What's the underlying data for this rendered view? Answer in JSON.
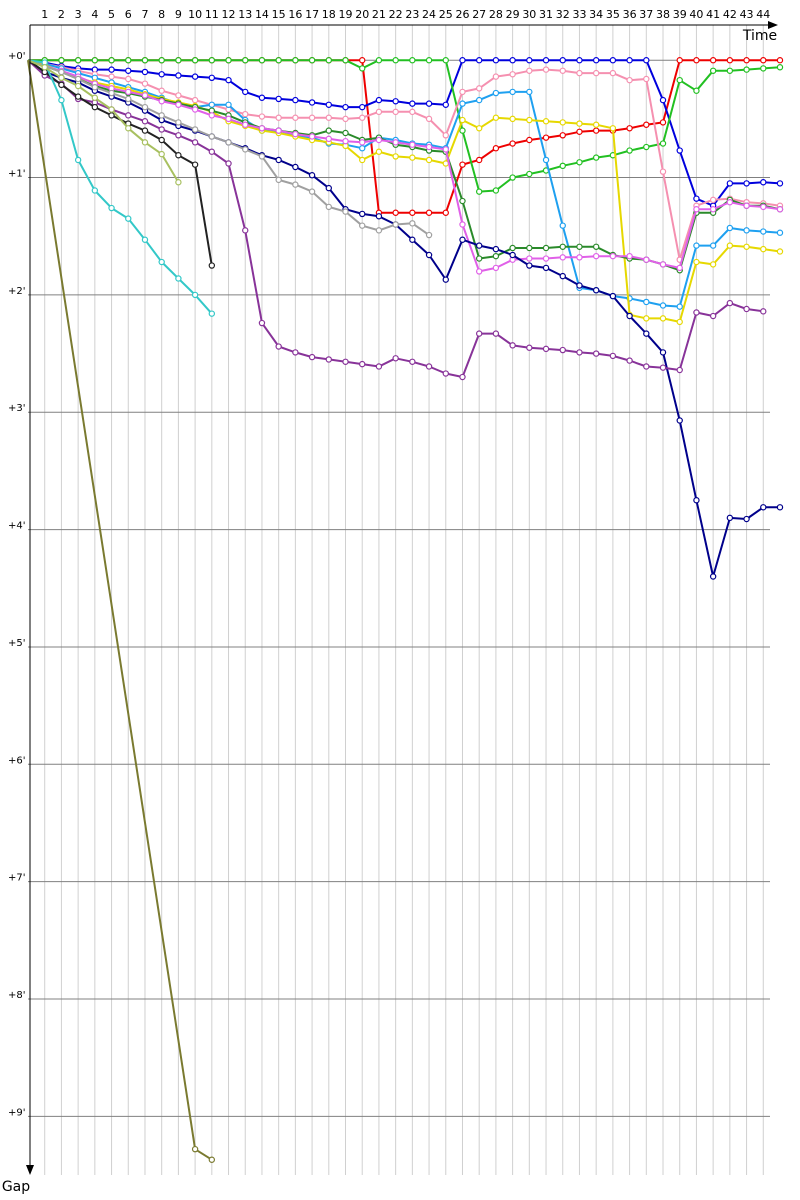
{
  "chart_data": {
    "type": "line",
    "x_label": "Time",
    "y_label": "Gap",
    "x": [
      0,
      1,
      2,
      3,
      4,
      5,
      6,
      7,
      8,
      9,
      10,
      11,
      12,
      13,
      14,
      15,
      16,
      17,
      18,
      19,
      20,
      21,
      22,
      23,
      24,
      25,
      26,
      27,
      28,
      29,
      30,
      31,
      32,
      33,
      34,
      35,
      36,
      37,
      38,
      39,
      40,
      41,
      42,
      43,
      44,
      45
    ],
    "xlim": [
      0,
      45.3
    ],
    "xticks": [
      1,
      2,
      3,
      4,
      5,
      6,
      7,
      8,
      9,
      10,
      11,
      12,
      13,
      14,
      15,
      16,
      17,
      18,
      19,
      20,
      21,
      22,
      23,
      24,
      25,
      26,
      27,
      28,
      29,
      30,
      31,
      32,
      33,
      34,
      35,
      36,
      37,
      38,
      39,
      40,
      41,
      42,
      43,
      44
    ],
    "ylim": [
      -0.3,
      9.5
    ],
    "y_inverted": true,
    "yticks": [
      {
        "value": 0,
        "label": "+0'"
      },
      {
        "value": 1,
        "label": "+1'"
      },
      {
        "value": 2,
        "label": "+2'"
      },
      {
        "value": 3,
        "label": "+3'"
      },
      {
        "value": 4,
        "label": "+4'"
      },
      {
        "value": 5,
        "label": "+5'"
      },
      {
        "value": 6,
        "label": "+6'"
      },
      {
        "value": 7,
        "label": "+7'"
      },
      {
        "value": 8,
        "label": "+8'"
      },
      {
        "value": 9,
        "label": "+9'"
      }
    ],
    "grid": true,
    "series": [
      {
        "color": "#ee0000",
        "values": [
          0,
          0,
          0,
          0,
          0,
          0,
          0,
          0,
          0,
          0,
          0,
          0,
          0,
          0,
          0,
          0,
          0,
          0,
          0,
          0,
          0,
          1.3,
          1.3,
          1.3,
          1.3,
          1.3,
          0.89,
          0.85,
          0.75,
          0.71,
          0.68,
          0.66,
          0.64,
          0.61,
          0.6,
          0.6,
          0.58,
          0.55,
          0.53,
          0,
          0,
          0,
          0,
          0,
          0,
          0
        ]
      },
      {
        "color": "#0000dd",
        "values": [
          0,
          0.02,
          0.05,
          0.07,
          0.08,
          0.08,
          0.09,
          0.1,
          0.12,
          0.13,
          0.14,
          0.15,
          0.17,
          0.27,
          0.32,
          0.33,
          0.34,
          0.36,
          0.38,
          0.4,
          0.4,
          0.34,
          0.35,
          0.37,
          0.37,
          0.38,
          0,
          0,
          0,
          0,
          0,
          0,
          0,
          0,
          0,
          0,
          0,
          0,
          0.34,
          0.77,
          1.18,
          1.24,
          1.05,
          1.05,
          1.04,
          1.05
        ]
      },
      {
        "color": "#22c022",
        "values": [
          0,
          0,
          0,
          0,
          0,
          0,
          0,
          0,
          0,
          0,
          0,
          0,
          0,
          0,
          0,
          0,
          0,
          0,
          0,
          0,
          0.07,
          0,
          0,
          0,
          0,
          0,
          0.6,
          1.12,
          1.11,
          1.0,
          0.97,
          0.94,
          0.9,
          0.87,
          0.83,
          0.81,
          0.77,
          0.74,
          0.71,
          0.17,
          0.26,
          0.09,
          0.09,
          0.08,
          0.07,
          0.06
        ]
      },
      {
        "color": "#f590b0",
        "values": [
          0,
          0.03,
          0.06,
          0.09,
          0.12,
          0.14,
          0.16,
          0.2,
          0.26,
          0.3,
          0.34,
          0.38,
          0.42,
          0.46,
          0.48,
          0.49,
          0.49,
          0.49,
          0.49,
          0.5,
          0.49,
          0.44,
          0.44,
          0.44,
          0.5,
          0.64,
          0.27,
          0.24,
          0.14,
          0.12,
          0.09,
          0.08,
          0.09,
          0.11,
          0.11,
          0.11,
          0.17,
          0.16,
          0.95,
          1.7,
          1.24,
          1.19,
          1.18,
          1.21,
          1.22,
          1.24
        ]
      },
      {
        "color": "#1ea0f0",
        "values": [
          0,
          0.03,
          0.07,
          0.11,
          0.15,
          0.19,
          0.23,
          0.27,
          0.32,
          0.37,
          0.4,
          0.38,
          0.38,
          0.51,
          0.6,
          0.6,
          0.64,
          0.66,
          0.71,
          0.72,
          0.75,
          0.66,
          0.68,
          0.71,
          0.72,
          0.75,
          0.37,
          0.34,
          0.28,
          0.27,
          0.27,
          0.85,
          1.41,
          1.94,
          1.96,
          2.01,
          2.03,
          2.06,
          2.09,
          2.1,
          1.58,
          1.58,
          1.43,
          1.45,
          1.46,
          1.47
        ]
      },
      {
        "color": "#e6d800",
        "values": [
          0,
          0.04,
          0.1,
          0.15,
          0.19,
          0.22,
          0.25,
          0.29,
          0.33,
          0.36,
          0.39,
          0.44,
          0.52,
          0.56,
          0.6,
          0.62,
          0.65,
          0.68,
          0.7,
          0.73,
          0.85,
          0.78,
          0.82,
          0.83,
          0.85,
          0.88,
          0.51,
          0.58,
          0.49,
          0.5,
          0.51,
          0.52,
          0.53,
          0.54,
          0.55,
          0.58,
          2.17,
          2.2,
          2.2,
          2.23,
          1.72,
          1.74,
          1.58,
          1.59,
          1.61,
          1.63
        ]
      },
      {
        "color": "#2a8a2a",
        "values": [
          0,
          0.05,
          0.1,
          0.16,
          0.22,
          0.26,
          0.28,
          0.31,
          0.34,
          0.37,
          0.4,
          0.43,
          0.47,
          0.53,
          0.58,
          0.6,
          0.62,
          0.64,
          0.6,
          0.62,
          0.68,
          0.66,
          0.72,
          0.74,
          0.77,
          0.78,
          1.2,
          1.69,
          1.67,
          1.6,
          1.6,
          1.6,
          1.59,
          1.59,
          1.59,
          1.66,
          1.69,
          1.7,
          1.74,
          1.79,
          1.3,
          1.3,
          1.19,
          1.24,
          1.24,
          1.27
        ]
      },
      {
        "color": "#e060e8",
        "values": [
          0,
          0.05,
          0.09,
          0.14,
          0.2,
          0.24,
          0.27,
          0.3,
          0.35,
          0.38,
          0.42,
          0.47,
          0.5,
          0.55,
          0.58,
          0.6,
          0.63,
          0.65,
          0.67,
          0.69,
          0.7,
          0.68,
          0.7,
          0.72,
          0.74,
          0.76,
          1.4,
          1.8,
          1.77,
          1.7,
          1.69,
          1.69,
          1.68,
          1.68,
          1.67,
          1.67,
          1.67,
          1.7,
          1.74,
          1.77,
          1.27,
          1.27,
          1.21,
          1.24,
          1.25,
          1.27
        ]
      },
      {
        "color": "#00008b",
        "values": [
          0,
          0.1,
          0.15,
          0.19,
          0.26,
          0.31,
          0.36,
          0.43,
          0.51,
          0.56,
          0.6,
          0.65,
          0.7,
          0.75,
          0.81,
          0.85,
          0.91,
          0.98,
          1.09,
          1.27,
          1.31,
          1.33,
          1.4,
          1.53,
          1.66,
          1.87,
          1.53,
          1.58,
          1.61,
          1.66,
          1.75,
          1.77,
          1.84,
          1.92,
          1.96,
          2.01,
          2.18,
          2.33,
          2.49,
          3.07,
          3.75,
          4.4,
          3.9,
          3.91,
          3.81,
          3.81
        ]
      },
      {
        "color": "#883399",
        "values": [
          0,
          0.13,
          0.2,
          0.33,
          0.36,
          0.42,
          0.47,
          0.52,
          0.59,
          0.64,
          0.7,
          0.78,
          0.88,
          1.45,
          2.24,
          2.44,
          2.49,
          2.53,
          2.55,
          2.57,
          2.59,
          2.61,
          2.54,
          2.57,
          2.61,
          2.67,
          2.7,
          2.33,
          2.33,
          2.43,
          2.45,
          2.46,
          2.47,
          2.49,
          2.5,
          2.52,
          2.56,
          2.61,
          2.62,
          2.64,
          2.15,
          2.18,
          2.07,
          2.12,
          2.14,
          null
        ]
      },
      {
        "color": "#a0a0a0",
        "values": [
          0,
          0.05,
          0.1,
          0.16,
          0.23,
          0.28,
          0.33,
          0.4,
          0.47,
          0.53,
          0.59,
          0.65,
          0.7,
          0.76,
          0.82,
          1.02,
          1.06,
          1.12,
          1.25,
          1.29,
          1.41,
          1.45,
          1.4,
          1.39,
          1.49,
          null,
          null,
          null,
          null,
          null,
          null,
          null,
          null,
          null,
          null,
          null,
          null,
          null,
          null,
          null,
          null,
          null,
          null,
          null,
          null,
          null
        ]
      },
      {
        "color": "#222222",
        "values": [
          0,
          0.1,
          0.21,
          0.31,
          0.4,
          0.47,
          0.54,
          0.6,
          0.68,
          0.81,
          0.89,
          1.75,
          null,
          null,
          null,
          null,
          null,
          null,
          null,
          null,
          null,
          null,
          null,
          null,
          null,
          null,
          null,
          null,
          null,
          null,
          null,
          null,
          null,
          null,
          null,
          null,
          null,
          null,
          null,
          null,
          null,
          null,
          null,
          null,
          null,
          null
        ]
      },
      {
        "color": "#33c8c8",
        "values": [
          0,
          0.02,
          0.34,
          0.85,
          1.11,
          1.26,
          1.35,
          1.53,
          1.72,
          1.86,
          2.0,
          2.16,
          null,
          null,
          null,
          null,
          null,
          null,
          null,
          null,
          null,
          null,
          null,
          null,
          null,
          null,
          null,
          null,
          null,
          null,
          null,
          null,
          null,
          null,
          null,
          null,
          null,
          null,
          null,
          null,
          null,
          null,
          null,
          null,
          null,
          null
        ]
      },
      {
        "color": "#a8c060",
        "values": [
          0,
          0.06,
          0.15,
          0.22,
          0.32,
          0.42,
          0.58,
          0.7,
          0.8,
          1.04,
          null,
          null,
          null,
          null,
          null,
          null,
          null,
          null,
          null,
          null,
          null,
          null,
          null,
          null,
          null,
          null,
          null,
          null,
          null,
          null,
          null,
          null,
          null,
          null,
          null,
          null,
          null,
          null,
          null,
          null,
          null,
          null,
          null,
          null,
          null,
          null
        ]
      },
      {
        "color": "#7a7a30",
        "x": [
          0,
          10,
          11
        ],
        "values": [
          0,
          9.28,
          9.37
        ]
      }
    ]
  }
}
